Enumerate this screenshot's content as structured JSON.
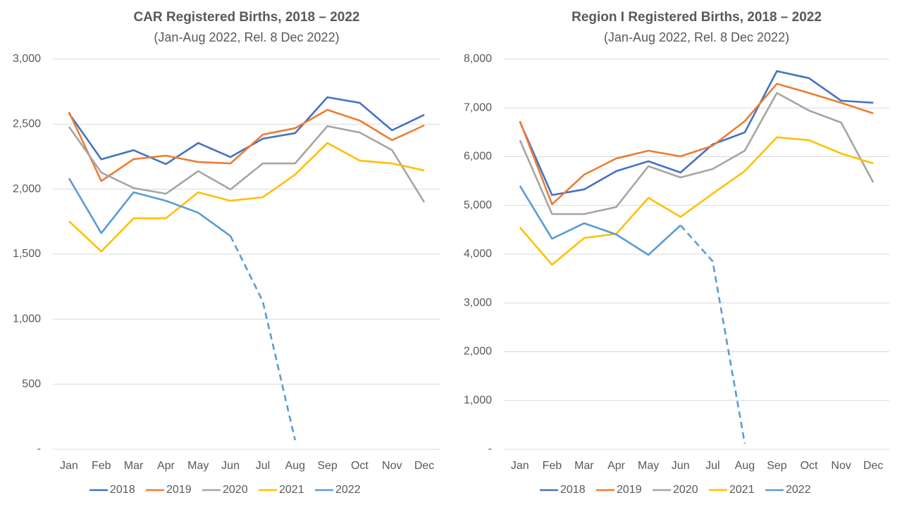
{
  "chart_data": [
    {
      "type": "line",
      "title": "CAR Registered Births, 2018 – 2022",
      "subtitle": "(Jan-Aug 2022, Rel. 8 Dec 2022)",
      "categories": [
        "Jan",
        "Feb",
        "Mar",
        "Apr",
        "May",
        "Jun",
        "Jul",
        "Aug",
        "Sep",
        "Oct",
        "Nov",
        "Dec"
      ],
      "ylim": [
        0,
        3000
      ],
      "yticks": [
        {
          "value": 0,
          "label": "-"
        },
        500,
        {
          "value": 1000,
          "label": "1,000"
        },
        {
          "value": 1500,
          "label": "1,500"
        },
        {
          "value": 2000,
          "label": "2,000"
        },
        {
          "value": 2500,
          "label": "2,500"
        },
        {
          "value": 3000,
          "label": "3,000"
        }
      ],
      "grid": true,
      "legend": "bottom",
      "series": [
        {
          "name": "2018",
          "color": "#4472c4",
          "values": [
            2583,
            2230,
            2300,
            2193,
            2355,
            2247,
            2388,
            2431,
            2707,
            2664,
            2453,
            2572
          ]
        },
        {
          "name": "2019",
          "color": "#ed7d31",
          "values": [
            2593,
            2063,
            2231,
            2258,
            2209,
            2198,
            2420,
            2469,
            2610,
            2528,
            2377,
            2491
          ]
        },
        {
          "name": "2020",
          "color": "#a5a5a5",
          "values": [
            2480,
            2128,
            2009,
            1965,
            2139,
            1998,
            2198,
            2198,
            2485,
            2436,
            2301,
            1900
          ]
        },
        {
          "name": "2021",
          "color": "#ffc000",
          "values": [
            1754,
            1521,
            1776,
            1776,
            1976,
            1911,
            1938,
            2112,
            2355,
            2220,
            2198,
            2144
          ]
        },
        {
          "name": "2022",
          "color": "#5b9bd5",
          "dashed_from": 5,
          "values": [
            2084,
            1662,
            1976,
            1911,
            1819,
            1640,
            1137,
            70,
            null,
            null,
            null,
            null
          ]
        }
      ]
    },
    {
      "type": "line",
      "title": "Region I Registered Births, 2018 – 2022",
      "subtitle": "(Jan-Aug 2022, Rel. 8 Dec 2022)",
      "categories": [
        "Jan",
        "Feb",
        "Mar",
        "Apr",
        "May",
        "Jun",
        "Jul",
        "Aug",
        "Sep",
        "Oct",
        "Nov",
        "Dec"
      ],
      "ylim": [
        0,
        8000
      ],
      "yticks": [
        {
          "value": 0,
          "label": "-"
        },
        {
          "value": 1000,
          "label": "1,000"
        },
        {
          "value": 2000,
          "label": "2,000"
        },
        {
          "value": 3000,
          "label": "3,000"
        },
        {
          "value": 4000,
          "label": "4,000"
        },
        {
          "value": 5000,
          "label": "5,000"
        },
        {
          "value": 6000,
          "label": "6,000"
        },
        {
          "value": 7000,
          "label": "7,000"
        },
        {
          "value": 8000,
          "label": "8,000"
        }
      ],
      "grid": true,
      "legend": "bottom",
      "series": [
        {
          "name": "2018",
          "color": "#4472c4",
          "values": [
            6715,
            5213,
            5329,
            5704,
            5906,
            5675,
            6253,
            6498,
            7755,
            7610,
            7148,
            7105
          ]
        },
        {
          "name": "2019",
          "color": "#ed7d31",
          "values": [
            6729,
            5025,
            5632,
            5964,
            6123,
            6007,
            6224,
            6729,
            7495,
            7307,
            7105,
            6888
          ]
        },
        {
          "name": "2020",
          "color": "#a5a5a5",
          "values": [
            6339,
            4823,
            4823,
            4968,
            5805,
            5574,
            5747,
            6123,
            7307,
            6946,
            6700,
            5473
          ]
        },
        {
          "name": "2021",
          "color": "#ffc000",
          "values": [
            4549,
            3783,
            4332,
            4419,
            5155,
            4765,
            5242,
            5704,
            6397,
            6339,
            6065,
            5863
          ]
        },
        {
          "name": "2022",
          "color": "#5b9bd5",
          "dashed_from": 5,
          "values": [
            5401,
            4318,
            4635,
            4404,
            3986,
            4592,
            3856,
            116,
            null,
            null,
            null,
            null
          ]
        }
      ]
    }
  ]
}
